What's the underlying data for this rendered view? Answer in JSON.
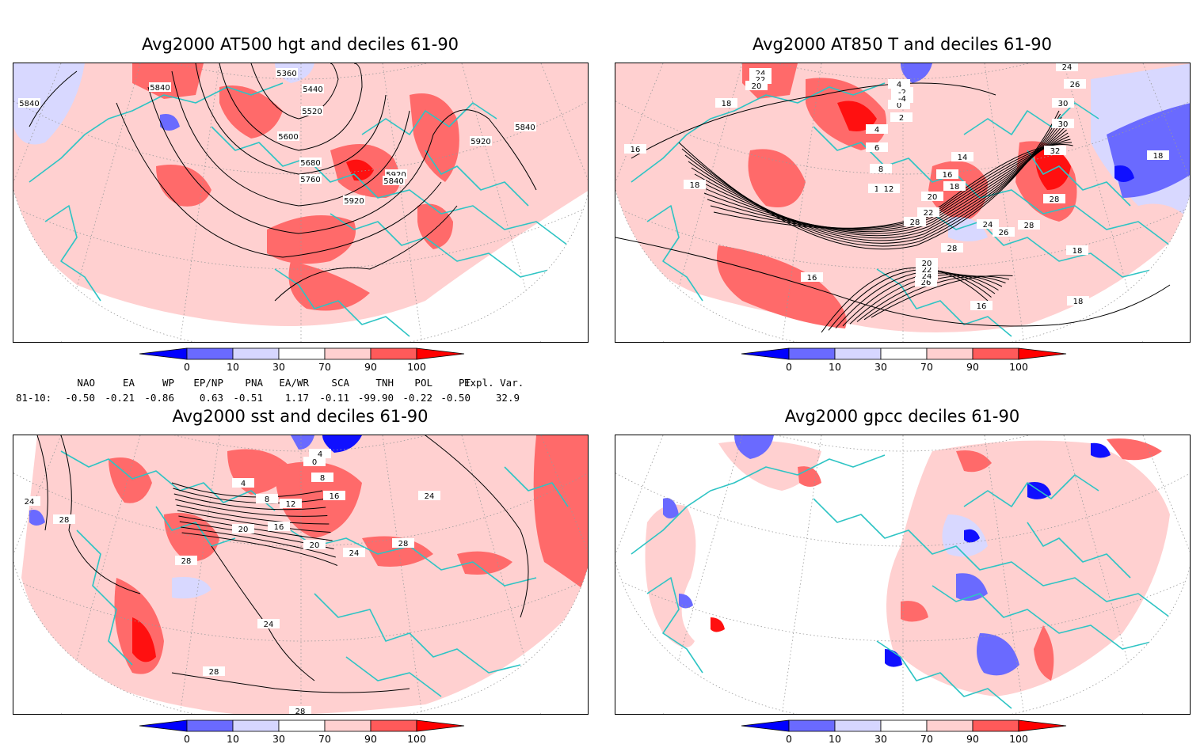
{
  "panels": [
    {
      "id": "hgt",
      "title": "Avg2000 AT500 hgt and deciles 61-90",
      "contour_labels": [
        "5360",
        "5440",
        "5520",
        "5600",
        "5680",
        "5760",
        "5840",
        "5920",
        "5920",
        "5840",
        "5840",
        "5840",
        "5920"
      ]
    },
    {
      "id": "t850",
      "title": "Avg2000 AT850 T and deciles 61-90",
      "contour_labels": [
        "24",
        "22",
        "20",
        "18",
        "16",
        "18",
        "4",
        "2",
        "0",
        "-2",
        "-4",
        "4",
        "6",
        "8",
        "10",
        "12",
        "14",
        "16",
        "18",
        "20",
        "22",
        "24",
        "26",
        "28",
        "28",
        "26",
        "24",
        "22",
        "20",
        "16",
        "16",
        "18",
        "18",
        "24",
        "26",
        "30",
        "32",
        "28",
        "28",
        "30",
        "18"
      ]
    },
    {
      "id": "sst",
      "title": "Avg2000 sst and deciles 61-90",
      "contour_labels": [
        "24",
        "28",
        "28",
        "24",
        "28",
        "20",
        "16",
        "12",
        "8",
        "4",
        "0",
        "4",
        "8",
        "16",
        "20",
        "24",
        "24",
        "28",
        "28"
      ]
    },
    {
      "id": "gpcc",
      "title": "Avg2000 gpcc deciles 61-90",
      "contour_labels": []
    }
  ],
  "colorbar": {
    "ticks": [
      "0",
      "10",
      "30",
      "70",
      "90",
      "100"
    ],
    "colors": [
      "#0000ff",
      "#6a6aff",
      "#d6d6ff",
      "#ffffff",
      "#ffd0d0",
      "#ff5a5a",
      "#ff0000"
    ]
  },
  "indices": {
    "row_label": "81-10:",
    "items": [
      {
        "name": "NAO",
        "value": "-0.50"
      },
      {
        "name": "EA",
        "value": "-0.21"
      },
      {
        "name": "WP",
        "value": "-0.86"
      },
      {
        "name": "EP/NP",
        "value": "0.63"
      },
      {
        "name": "PNA",
        "value": "-0.51"
      },
      {
        "name": "EA/WR",
        "value": "1.17"
      },
      {
        "name": "SCA",
        "value": "-0.11"
      },
      {
        "name": "TNH",
        "value": "-99.90"
      },
      {
        "name": "POL",
        "value": "-0.22"
      },
      {
        "name": "PT",
        "value": "-0.50"
      },
      {
        "name": "Expl. Var.",
        "value": "32.9"
      }
    ]
  },
  "map_colors": {
    "coast": "#2ec4c4",
    "contour": "#000000",
    "grid": "#9a9a9a"
  }
}
